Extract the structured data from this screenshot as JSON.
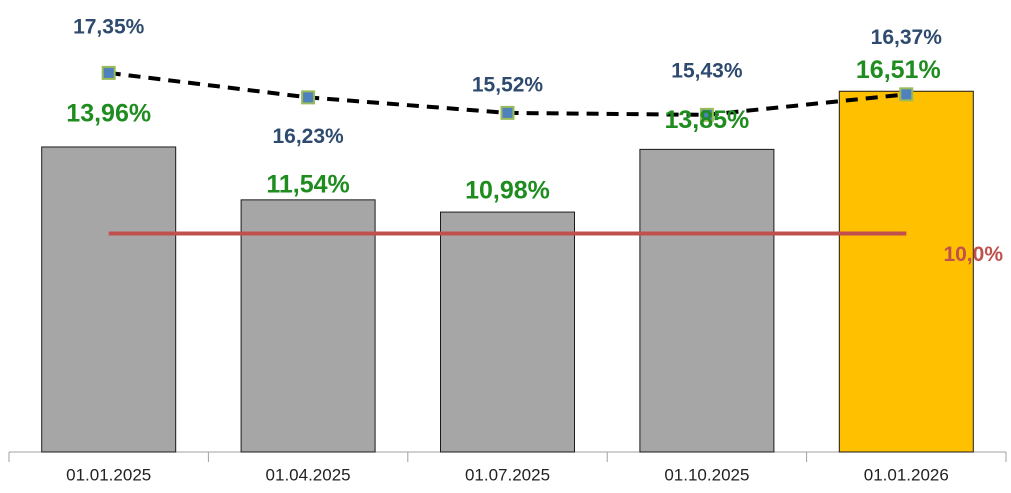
{
  "chart_data": {
    "type": "combo",
    "categories": [
      "01.01.2025",
      "01.04.2025",
      "01.07.2025",
      "01.10.2025",
      "01.01.2026"
    ],
    "series": [
      {
        "type": "bar",
        "values": [
          13.96,
          11.54,
          10.98,
          13.85,
          16.51
        ],
        "value_labels": [
          "13,96%",
          "11,54%",
          "10,98%",
          "13,85%",
          "16,51%"
        ],
        "colors": [
          "#a6a6a6",
          "#a6a6a6",
          "#a6a6a6",
          "#a6a6a6",
          "#ffc000"
        ],
        "label_color": "#1e8c1e"
      },
      {
        "type": "line",
        "values": [
          17.35,
          16.23,
          15.52,
          15.43,
          16.37
        ],
        "value_labels": [
          "17,35%",
          "16,23%",
          "15,52%",
          "15,43%",
          "16,37%"
        ],
        "color": "#000000",
        "marker_color": "#4f81bd",
        "marker_edge": "#9bbb59",
        "label_color": "#2e4a6e",
        "dashed": true
      }
    ],
    "threshold": {
      "value": 10.0,
      "label": "10,0%",
      "color": "#c0504d"
    },
    "ylim": [
      0,
      20
    ]
  }
}
